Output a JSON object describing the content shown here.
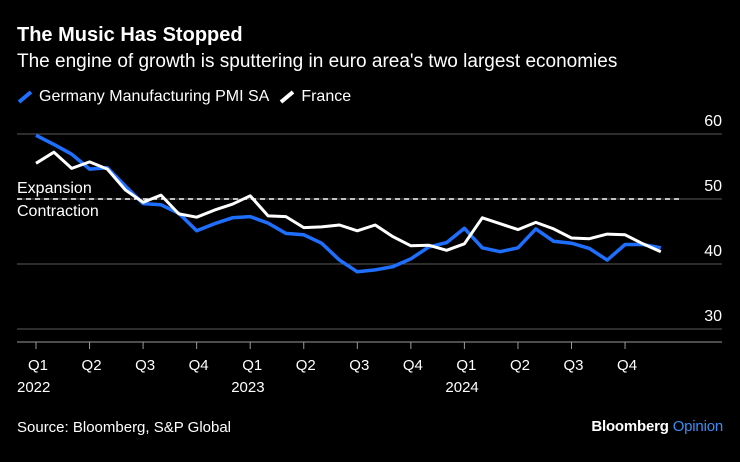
{
  "header": {
    "title": "The Music Has Stopped",
    "subtitle": "The engine of growth is sputtering in euro area's two largest economies"
  },
  "footer": {
    "source": "Source: Bloomberg, S&P Global",
    "brand_main": "Bloomberg",
    "brand_sub": "Opinion"
  },
  "colors": {
    "background": "#000000",
    "germany": "#1f6fff",
    "france": "#ffffff",
    "grid": "#5a5a5a",
    "brand_accent": "#3a8ef5"
  },
  "chart_data": {
    "type": "line",
    "title": "The Music Has Stopped",
    "subtitle": "The engine of growth is sputtering in euro area's two largest economies",
    "x": [
      "2022-01",
      "2022-02",
      "2022-03",
      "2022-04",
      "2022-05",
      "2022-06",
      "2022-07",
      "2022-08",
      "2022-09",
      "2022-10",
      "2022-11",
      "2022-12",
      "2023-01",
      "2023-02",
      "2023-03",
      "2023-04",
      "2023-05",
      "2023-06",
      "2023-07",
      "2023-08",
      "2023-09",
      "2023-10",
      "2023-11",
      "2023-12",
      "2024-01",
      "2024-02",
      "2024-03",
      "2024-04",
      "2024-05",
      "2024-06",
      "2024-07",
      "2024-08",
      "2024-09",
      "2024-10",
      "2024-11",
      "2024-12"
    ],
    "series": [
      {
        "name": "Germany Manufacturing PMI SA",
        "color": "#1f6fff",
        "values": [
          59.8,
          58.4,
          56.9,
          54.6,
          54.8,
          52.0,
          49.3,
          49.1,
          47.8,
          45.1,
          46.2,
          47.1,
          47.3,
          46.3,
          44.7,
          44.5,
          43.2,
          40.6,
          38.8,
          39.1,
          39.6,
          40.8,
          42.6,
          43.3,
          45.5,
          42.5,
          41.9,
          42.5,
          45.4,
          43.5,
          43.2,
          42.4,
          40.6,
          43.0,
          43.0,
          42.5
        ]
      },
      {
        "name": "France",
        "color": "#ffffff",
        "values": [
          55.5,
          57.2,
          54.7,
          55.7,
          54.6,
          51.4,
          49.5,
          50.6,
          47.7,
          47.2,
          48.3,
          49.2,
          50.5,
          47.4,
          47.3,
          45.6,
          45.7,
          46.0,
          45.1,
          46.0,
          44.2,
          42.8,
          42.9,
          42.1,
          43.1,
          47.1,
          46.2,
          45.3,
          46.4,
          45.4,
          44.0,
          43.9,
          44.6,
          44.5,
          43.1,
          41.9
        ]
      }
    ],
    "y_ticks": [
      30,
      40,
      50,
      60
    ],
    "ylim": [
      28,
      60
    ],
    "reference_line": {
      "value": 50,
      "label_above": "Expansion",
      "label_below": "Contraction"
    },
    "x_ticks": [
      {
        "date": "2022-01",
        "label": "Q1",
        "year": "2022"
      },
      {
        "date": "2022-04",
        "label": "Q2",
        "year": ""
      },
      {
        "date": "2022-07",
        "label": "Q3",
        "year": ""
      },
      {
        "date": "2022-10",
        "label": "Q4",
        "year": ""
      },
      {
        "date": "2023-01",
        "label": "Q1",
        "year": "2023"
      },
      {
        "date": "2023-04",
        "label": "Q2",
        "year": ""
      },
      {
        "date": "2023-07",
        "label": "Q3",
        "year": ""
      },
      {
        "date": "2023-10",
        "label": "Q4",
        "year": ""
      },
      {
        "date": "2024-01",
        "label": "Q1",
        "year": "2024"
      },
      {
        "date": "2024-04",
        "label": "Q2",
        "year": ""
      },
      {
        "date": "2024-07",
        "label": "Q3",
        "year": ""
      },
      {
        "date": "2024-10",
        "label": "Q4",
        "year": ""
      }
    ],
    "grid": true,
    "legend_position": "top-left"
  }
}
